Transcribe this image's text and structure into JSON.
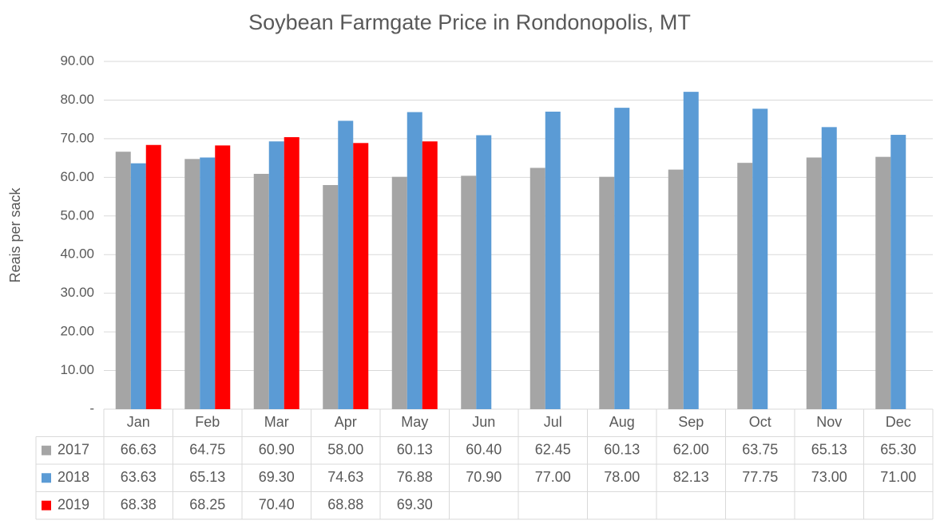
{
  "chart_data": {
    "type": "bar",
    "title": "Soybean Farmgate Price in Rondonopolis, MT",
    "y_label": "Reais per sack",
    "categories": [
      "Jan",
      "Feb",
      "Mar",
      "Apr",
      "May",
      "Jun",
      "Jul",
      "Aug",
      "Sep",
      "Oct",
      "Nov",
      "Dec"
    ],
    "series": [
      {
        "name": "2017",
        "color": "#a5a5a5",
        "values": [
          66.63,
          64.75,
          60.9,
          58,
          60.13,
          60.4,
          62.45,
          60.13,
          62,
          63.75,
          65.13,
          65.3
        ],
        "value_labels": [
          "66.63",
          "64.75",
          "60.90",
          "58.00",
          "60.13",
          "60.40",
          "62.45",
          "60.13",
          "62.00",
          "63.75",
          "65.13",
          "65.30"
        ]
      },
      {
        "name": "2018",
        "color": "#5b9bd5",
        "values": [
          63.63,
          65.13,
          69.3,
          74.63,
          76.88,
          70.9,
          77,
          78,
          82.13,
          77.75,
          73,
          71
        ],
        "value_labels": [
          "63.63",
          "65.13",
          "69.30",
          "74.63",
          "76.88",
          "70.90",
          "77.00",
          "78.00",
          "82.13",
          "77.75",
          "73.00",
          "71.00"
        ]
      },
      {
        "name": "2019",
        "color": "#ff0000",
        "values": [
          68.38,
          68.25,
          70.4,
          68.88,
          69.3,
          null,
          null,
          null,
          null,
          null,
          null,
          null
        ],
        "value_labels": [
          "68.38",
          "68.25",
          "70.40",
          "68.88",
          "69.30",
          null,
          null,
          null,
          null,
          null,
          null,
          null
        ]
      }
    ],
    "ylim": [
      0,
      90
    ],
    "yticks": [
      {
        "value": 0,
        "label": "-"
      },
      {
        "value": 10,
        "label": "10.00"
      },
      {
        "value": 20,
        "label": "20.00"
      },
      {
        "value": 30,
        "label": "30.00"
      },
      {
        "value": 40,
        "label": "40.00"
      },
      {
        "value": 50,
        "label": "50.00"
      },
      {
        "value": 60,
        "label": "60.00"
      },
      {
        "value": 70,
        "label": "70.00"
      },
      {
        "value": 80,
        "label": "80.00"
      },
      {
        "value": 90,
        "label": "90.00"
      }
    ],
    "grid": true
  }
}
